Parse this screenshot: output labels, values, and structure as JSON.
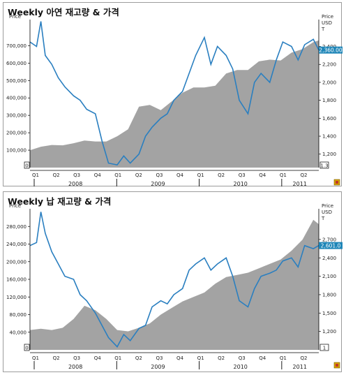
{
  "chart_data": [
    {
      "type": "area+line",
      "title": "Weekly 아연 재고량 & 가격",
      "left_axis_label": "Price",
      "right_axis_labels": [
        "Price",
        "USD",
        "T"
      ],
      "left_ticks": [
        "700,000",
        "600,000",
        "500,000",
        "400,000",
        "300,000",
        "200,000",
        "100,000"
      ],
      "left_tick_values": [
        700000,
        600000,
        500000,
        400000,
        300000,
        200000,
        100000
      ],
      "left_lim": [
        0,
        850000
      ],
      "right_ticks": [
        "2,400",
        "2,200",
        "2,000",
        "1,800",
        "1,600",
        "1,400",
        "1,200"
      ],
      "right_tick_values": [
        2400,
        2200,
        2000,
        1800,
        1600,
        1400,
        1200
      ],
      "right_lim": [
        1050,
        2700
      ],
      "left_corner_marker": "0",
      "right_corner_marker": "1.3",
      "x_ticks": [
        "Q1",
        "Q2",
        "Q3",
        "Q4",
        "Q1",
        "Q2",
        "Q3",
        "Q4",
        "Q1",
        "Q2",
        "Q3",
        "Q4",
        "Q1",
        "Q2"
      ],
      "years": [
        "2008",
        "2009",
        "2010",
        "2011"
      ],
      "last_value_label": "2,360.00",
      "series": [
        {
          "kind": "area",
          "color": "#a3a3a3",
          "x": [
            0,
            0.5,
            1,
            1.5,
            2,
            2.5,
            3,
            3.5,
            4,
            4.5,
            5,
            5.5,
            6,
            6.5,
            7,
            7.5,
            8,
            8.5,
            9,
            9.5,
            10,
            10.5,
            11,
            11.5,
            12,
            12.5,
            13,
            13.25
          ],
          "values": [
            100000,
            120000,
            130000,
            128000,
            140000,
            155000,
            150000,
            150000,
            180000,
            220000,
            350000,
            360000,
            330000,
            380000,
            430000,
            460000,
            460000,
            470000,
            540000,
            560000,
            560000,
            610000,
            620000,
            615000,
            660000,
            680000,
            720000,
            730000
          ]
        },
        {
          "kind": "line",
          "color": "#2a7fc0",
          "x": [
            0,
            0.3,
            0.5,
            0.7,
            1,
            1.3,
            1.6,
            2,
            2.3,
            2.6,
            3,
            3.3,
            3.6,
            4,
            4.3,
            4.6,
            5,
            5.3,
            5.6,
            6,
            6.3,
            6.6,
            7,
            7.3,
            7.6,
            8,
            8.3,
            8.6,
            9,
            9.3,
            9.6,
            10,
            10.3,
            10.6,
            11,
            11.3,
            11.6,
            12,
            12.3,
            12.6,
            13,
            13.25
          ],
          "values": [
            2450,
            2400,
            2680,
            2300,
            2200,
            2050,
            1950,
            1850,
            1800,
            1700,
            1650,
            1350,
            1100,
            1080,
            1180,
            1100,
            1200,
            1400,
            1500,
            1600,
            1650,
            1800,
            1900,
            2100,
            2300,
            2500,
            2200,
            2400,
            2300,
            2150,
            1800,
            1650,
            2000,
            2100,
            2000,
            2250,
            2450,
            2400,
            2250,
            2420,
            2480,
            2360
          ]
        }
      ]
    },
    {
      "type": "area+line",
      "title": "Weekly 납 재고량 & 가격",
      "left_axis_label": "Price",
      "right_axis_labels": [
        "Price",
        "USD",
        "T"
      ],
      "left_ticks": [
        "280,000",
        "240,000",
        "200,000",
        "160,000",
        "120,000",
        "80,000",
        "40,000"
      ],
      "left_tick_values": [
        280000,
        240000,
        200000,
        160000,
        120000,
        80000,
        40000
      ],
      "left_lim": [
        0,
        320000
      ],
      "right_ticks": [
        "2,700",
        "2,400",
        "2,100",
        "1,800",
        "1,500",
        "1,200"
      ],
      "right_tick_values": [
        2700,
        2400,
        2100,
        1800,
        1500,
        1200
      ],
      "right_lim": [
        900,
        3200
      ],
      "left_corner_marker": "0",
      "right_corner_marker": "1",
      "x_ticks": [
        "Q1",
        "Q2",
        "Q3",
        "Q4",
        "Q1",
        "Q2",
        "Q3",
        "Q4",
        "Q1",
        "Q2",
        "Q3",
        "Q4",
        "Q1",
        "Q2"
      ],
      "years": [
        "2008",
        "2009",
        "2010",
        "2011"
      ],
      "last_value_label": "2,601.0",
      "series": [
        {
          "kind": "area",
          "color": "#a3a3a3",
          "x": [
            0,
            0.5,
            1,
            1.5,
            2,
            2.5,
            3,
            3.5,
            4,
            4.5,
            5,
            5.5,
            6,
            6.5,
            7,
            7.5,
            8,
            8.5,
            9,
            9.5,
            10,
            10.5,
            11,
            11.5,
            12,
            12.5,
            13,
            13.25
          ],
          "values": [
            45000,
            48000,
            45000,
            50000,
            70000,
            100000,
            90000,
            70000,
            45000,
            42000,
            50000,
            60000,
            80000,
            95000,
            110000,
            120000,
            130000,
            150000,
            165000,
            170000,
            175000,
            185000,
            195000,
            205000,
            225000,
            250000,
            295000,
            285000
          ]
        },
        {
          "kind": "line",
          "color": "#2a7fc0",
          "x": [
            0,
            0.3,
            0.5,
            0.7,
            1,
            1.3,
            1.6,
            2,
            2.3,
            2.6,
            3,
            3.3,
            3.6,
            4,
            4.3,
            4.6,
            5,
            5.3,
            5.6,
            6,
            6.3,
            6.6,
            7,
            7.3,
            7.6,
            8,
            8.3,
            8.6,
            9,
            9.3,
            9.6,
            10,
            10.3,
            10.6,
            11,
            11.3,
            11.6,
            12,
            12.3,
            12.6,
            13,
            13.25
          ],
          "values": [
            2600,
            2650,
            3150,
            2800,
            2500,
            2300,
            2100,
            2050,
            1800,
            1700,
            1500,
            1300,
            1100,
            950,
            1150,
            1050,
            1250,
            1300,
            1600,
            1700,
            1650,
            1800,
            1900,
            2200,
            2300,
            2400,
            2200,
            2300,
            2400,
            2100,
            1700,
            1600,
            1900,
            2100,
            2150,
            2200,
            2350,
            2400,
            2250,
            2600,
            2550,
            2601
          ]
        }
      ]
    }
  ],
  "corner_icon_name": "chart-settings-icon"
}
